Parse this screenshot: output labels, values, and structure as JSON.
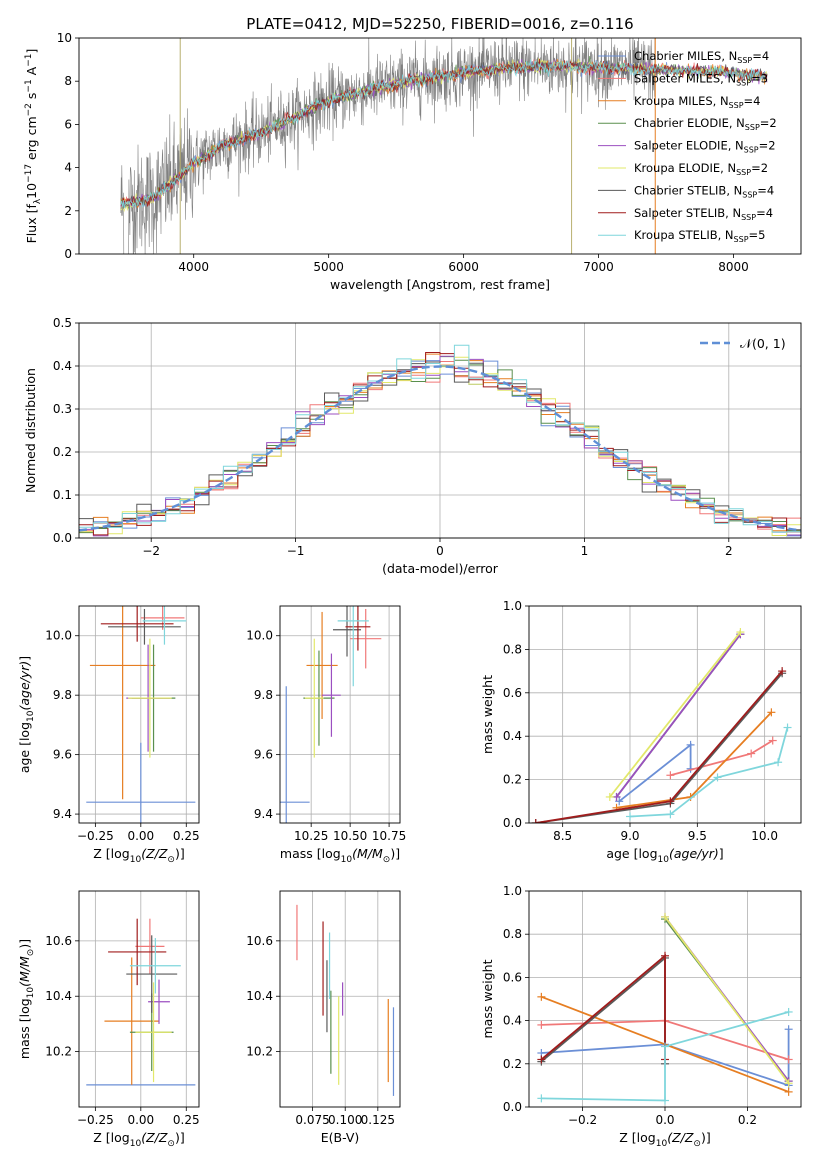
{
  "figure": {
    "title": "PLATE=0412, MJD=52250, FIBERID=0016, z=0.116"
  },
  "colors": {
    "data_gray": "#808080",
    "fits": [
      "#6b8fd6",
      "#f07878",
      "#e67e22",
      "#5a8f4e",
      "#9b4fc0",
      "#e2e86a",
      "#5a5a5a",
      "#a01c1c",
      "#7fd6dc"
    ],
    "normal_curve": "#5f8fd6",
    "grid": "#b0b0b0"
  },
  "chart_data": [
    {
      "id": "spectrum",
      "type": "line",
      "xlabel": "wavelength [Angstrom, rest frame]",
      "ylabel": "Flux [f",
      "xlim": [
        3150,
        8500
      ],
      "ylim": [
        0,
        10
      ],
      "xticks": [
        4000,
        5000,
        6000,
        7000,
        8000
      ],
      "yticks": [
        0,
        2,
        4,
        6,
        8,
        10
      ],
      "grid": false,
      "legend_position": "top-right",
      "legend": [
        "Chabrier MILES, N",
        "Salpeter MILES, N",
        "Kroupa MILES, N",
        "Chabrier ELODIE, N",
        "Salpeter ELODIE, N",
        "Kroupa ELODIE, N",
        "Chabrier STELIB, N",
        "Salpeter STELIB, N",
        "Kroupa STELIB, N"
      ],
      "legend_counts": [
        "=4",
        "=3",
        "=4",
        "=2",
        "=2",
        "=2",
        "=4",
        "=4",
        "=5"
      ],
      "continuum": {
        "x": [
          3500,
          3700,
          3900,
          4000,
          4200,
          4500,
          4800,
          5000,
          5300,
          5600,
          6000,
          6300,
          6600,
          7000,
          7300,
          7600,
          8000,
          8250
        ],
        "y": [
          2.3,
          2.6,
          3.6,
          4.2,
          5.0,
          5.6,
          6.5,
          7.1,
          7.6,
          8.0,
          8.4,
          8.6,
          8.7,
          8.65,
          8.55,
          8.5,
          8.4,
          8.2
        ]
      },
      "data_range": [
        3460,
        7420
      ],
      "fit_range": [
        3460,
        8250
      ]
    },
    {
      "id": "residuals",
      "type": "step",
      "xlabel": "(data-model)/error",
      "ylabel": "Normed distribution",
      "xlim": [
        -2.5,
        2.5
      ],
      "ylim": [
        0,
        0.5
      ],
      "xticks": [
        -2,
        -1,
        0,
        1,
        2
      ],
      "yticks": [
        0.0,
        0.1,
        0.2,
        0.3,
        0.4,
        0.5
      ],
      "grid": true,
      "legend_position": "top-right",
      "curve_label": "𝒩(0, 1)",
      "bins": 50
    },
    {
      "id": "age_vs_Z",
      "type": "errorbar",
      "xlabel": "Z [log",
      "ylabel": "age  [log",
      "xlim": [
        -0.34,
        0.32
      ],
      "ylim": [
        9.37,
        10.1
      ],
      "xticks": [
        -0.25,
        0.0,
        0.25
      ],
      "yticks": [
        9.4,
        9.6,
        9.8,
        10.0
      ],
      "grid": true,
      "points": [
        {
          "x": 0.0,
          "xerr": 0.3,
          "y": 9.44,
          "yerr": 0.2
        },
        {
          "x": 0.12,
          "xerr": 0.12,
          "y": 10.06,
          "yerr": 0.04
        },
        {
          "x": -0.1,
          "xerr": 0.18,
          "y": 9.9,
          "yerr": 0.45
        },
        {
          "x": 0.07,
          "xerr": 0.12,
          "y": 9.79,
          "yerr": 0.18
        },
        {
          "x": 0.04,
          "xerr": 0.12,
          "y": 9.79,
          "yerr": 0.18
        },
        {
          "x": 0.05,
          "xerr": 0.12,
          "y": 9.79,
          "yerr": 0.2
        },
        {
          "x": 0.02,
          "xerr": 0.2,
          "y": 10.03,
          "yerr": 0.06
        },
        {
          "x": -0.02,
          "xerr": 0.2,
          "y": 10.04,
          "yerr": 0.06
        },
        {
          "x": 0.13,
          "xerr": 0.12,
          "y": 10.05,
          "yerr": 0.08
        }
      ]
    },
    {
      "id": "age_vs_mass",
      "type": "errorbar",
      "xlabel": "mass [log",
      "ylabel": "",
      "xlim": [
        10.05,
        10.82
      ],
      "ylim": [
        9.37,
        10.1
      ],
      "xticks": [
        10.25,
        10.5,
        10.75
      ],
      "yticks": [
        9.4,
        9.6,
        9.8,
        10.0
      ],
      "grid": true,
      "points": [
        {
          "x": 10.09,
          "xerr": 0.15,
          "y": 9.44,
          "yerr": 0.39
        },
        {
          "x": 10.6,
          "xerr": 0.1,
          "y": 9.99,
          "yerr": 0.1
        },
        {
          "x": 10.32,
          "xerr": 0.1,
          "y": 9.9,
          "yerr": 0.18
        },
        {
          "x": 10.3,
          "xerr": 0.1,
          "y": 9.79,
          "yerr": 0.16
        },
        {
          "x": 10.38,
          "xerr": 0.06,
          "y": 9.8,
          "yerr": 0.14
        },
        {
          "x": 10.27,
          "xerr": 0.06,
          "y": 9.79,
          "yerr": 0.2
        },
        {
          "x": 10.48,
          "xerr": 0.09,
          "y": 10.02,
          "yerr": 0.09
        },
        {
          "x": 10.55,
          "xerr": 0.08,
          "y": 10.03,
          "yerr": 0.08
        },
        {
          "x": 10.52,
          "xerr": 0.1,
          "y": 10.05,
          "yerr": 0.22
        }
      ]
    },
    {
      "id": "weight_vs_age",
      "type": "line",
      "xlabel": "age  [log",
      "ylabel": "mass weight",
      "xlim": [
        8.25,
        10.27
      ],
      "ylim": [
        0,
        1
      ],
      "xticks": [
        8.5,
        9.0,
        9.5,
        10.0
      ],
      "yticks": [
        0.0,
        0.2,
        0.4,
        0.6,
        0.8,
        1.0
      ],
      "grid": true,
      "series": [
        {
          "x": [
            8.92,
            9.45,
            9.45
          ],
          "y": [
            0.1,
            0.36,
            0.25
          ]
        },
        {
          "x": [
            9.3,
            9.9,
            10.06
          ],
          "y": [
            0.22,
            0.32,
            0.38
          ]
        },
        {
          "x": [
            8.9,
            9.45,
            10.05
          ],
          "y": [
            0.07,
            0.12,
            0.51
          ]
        },
        {
          "x": [
            8.9,
            9.82
          ],
          "y": [
            0.12,
            0.87
          ]
        },
        {
          "x": [
            8.9,
            9.82
          ],
          "y": [
            0.12,
            0.87
          ]
        },
        {
          "x": [
            8.85,
            9.82
          ],
          "y": [
            0.12,
            0.88
          ]
        },
        {
          "x": [
            8.3,
            9.3,
            10.13
          ],
          "y": [
            0.0,
            0.09,
            0.69
          ]
        },
        {
          "x": [
            8.3,
            9.3,
            10.13
          ],
          "y": [
            0.0,
            0.1,
            0.7
          ]
        },
        {
          "x": [
            9.0,
            9.3,
            9.65,
            10.1,
            10.17
          ],
          "y": [
            0.03,
            0.04,
            0.21,
            0.28,
            0.44
          ]
        }
      ]
    },
    {
      "id": "mass_vs_Z",
      "type": "errorbar",
      "xlabel": "Z [log",
      "ylabel": "mass [log",
      "xlim": [
        -0.34,
        0.32
      ],
      "ylim": [
        10.0,
        10.78
      ],
      "xticks": [
        -0.25,
        0.0,
        0.25
      ],
      "yticks": [
        10.2,
        10.4,
        10.6
      ],
      "grid": true,
      "points": [
        {
          "x": 0.0,
          "xerr": 0.3,
          "y": 10.08,
          "yerr": 0.0
        },
        {
          "x": 0.05,
          "xerr": 0.08,
          "y": 10.58,
          "yerr": 0.1
        },
        {
          "x": -0.05,
          "xerr": 0.15,
          "y": 10.31,
          "yerr": 0.23
        },
        {
          "x": 0.06,
          "xerr": 0.12,
          "y": 10.27,
          "yerr": 0.14
        },
        {
          "x": 0.1,
          "xerr": 0.06,
          "y": 10.38,
          "yerr": 0.08
        },
        {
          "x": 0.07,
          "xerr": 0.1,
          "y": 10.27,
          "yerr": 0.18
        },
        {
          "x": 0.06,
          "xerr": 0.14,
          "y": 10.48,
          "yerr": 0.14
        },
        {
          "x": -0.02,
          "xerr": 0.16,
          "y": 10.56,
          "yerr": 0.12
        },
        {
          "x": 0.08,
          "xerr": 0.14,
          "y": 10.51,
          "yerr": 0.1
        }
      ]
    },
    {
      "id": "mass_vs_ebv",
      "type": "errorbar",
      "xlabel": "E(B-V)",
      "ylabel": "",
      "xlim": [
        0.05,
        0.142
      ],
      "ylim": [
        10.0,
        10.78
      ],
      "xticks": [
        0.075,
        0.1,
        0.125
      ],
      "yticks": [
        10.2,
        10.4,
        10.6
      ],
      "grid": true,
      "points": [
        {
          "x": 0.137,
          "xerr": 0.0,
          "y": 10.2,
          "yerr": 0.16
        },
        {
          "x": 0.063,
          "xerr": 0.0,
          "y": 10.63,
          "yerr": 0.1
        },
        {
          "x": 0.133,
          "xerr": 0.0,
          "y": 10.24,
          "yerr": 0.15
        },
        {
          "x": 0.089,
          "xerr": 0.0,
          "y": 10.27,
          "yerr": 0.15
        },
        {
          "x": 0.098,
          "xerr": 0.0,
          "y": 10.39,
          "yerr": 0.06
        },
        {
          "x": 0.095,
          "xerr": 0.0,
          "y": 10.24,
          "yerr": 0.16
        },
        {
          "x": 0.086,
          "xerr": 0.0,
          "y": 10.4,
          "yerr": 0.13
        },
        {
          "x": 0.083,
          "xerr": 0.0,
          "y": 10.5,
          "yerr": 0.17
        },
        {
          "x": 0.088,
          "xerr": 0.0,
          "y": 10.51,
          "yerr": 0.12
        }
      ]
    },
    {
      "id": "weight_vs_Z",
      "type": "line",
      "xlabel": "Z [log",
      "ylabel": "mass weight",
      "xlim": [
        -0.33,
        0.33
      ],
      "ylim": [
        0,
        1
      ],
      "xticks": [
        -0.2,
        0.0,
        0.2
      ],
      "yticks": [
        0.0,
        0.2,
        0.4,
        0.6,
        0.8,
        1.0
      ],
      "grid": true,
      "series": [
        {
          "x": [
            -0.3,
            0.0,
            0.3,
            0.3
          ],
          "y": [
            0.25,
            0.29,
            0.1,
            0.36
          ]
        },
        {
          "x": [
            -0.3,
            0.0,
            0.3
          ],
          "y": [
            0.38,
            0.4,
            0.22
          ]
        },
        {
          "x": [
            -0.3,
            0.3
          ],
          "y": [
            0.51,
            0.07
          ]
        },
        {
          "x": [
            0.0,
            0.3
          ],
          "y": [
            0.87,
            0.12
          ]
        },
        {
          "x": [
            0.0,
            0.3
          ],
          "y": [
            0.88,
            0.12
          ]
        },
        {
          "x": [
            0.0,
            0.3
          ],
          "y": [
            0.88,
            0.11
          ]
        },
        {
          "x": [
            -0.3,
            0.0,
            0.0
          ],
          "y": [
            0.21,
            0.69,
            0.2
          ]
        },
        {
          "x": [
            -0.3,
            0.0,
            0.0
          ],
          "y": [
            0.22,
            0.7,
            0.22
          ]
        },
        {
          "x": [
            -0.3,
            0.0,
            0.0,
            0.3
          ],
          "y": [
            0.04,
            0.03,
            0.28,
            0.44
          ]
        }
      ]
    }
  ]
}
